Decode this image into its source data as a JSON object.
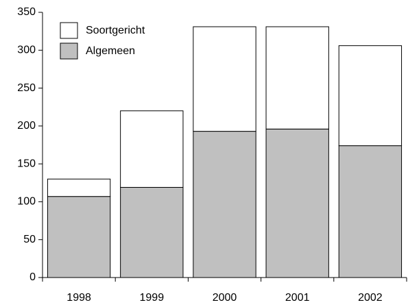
{
  "chart_data": {
    "type": "stacked_bar",
    "categories": [
      "1998",
      "1999",
      "2000",
      "2001",
      "2002"
    ],
    "series": [
      {
        "name": "Algemeen",
        "color": "#c0c0c0",
        "values": [
          107,
          119,
          193,
          196,
          174
        ]
      },
      {
        "name": "Soortgericht",
        "color": "#ffffff",
        "values": [
          23,
          101,
          138,
          135,
          132
        ]
      }
    ],
    "ylim": [
      0,
      350
    ],
    "yticks": [
      0,
      50,
      100,
      150,
      200,
      250,
      300,
      350
    ],
    "grid": false
  }
}
